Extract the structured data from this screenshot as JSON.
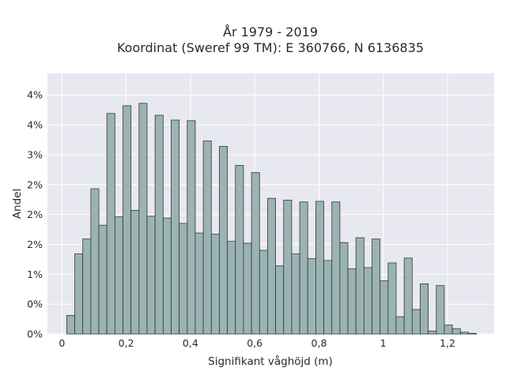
{
  "chart_data": {
    "type": "bar",
    "title_line1": "År 1979 - 2019",
    "title_line2": "Koordinat (Sweref 99 TM): E 360766, N 6136835",
    "xlabel": "Signifikant våghöjd (m)",
    "ylabel": "Andel",
    "xlim": [
      -0.045,
      1.345
    ],
    "ylim": [
      0,
      0.0436
    ],
    "x_ticks": [
      {
        "value": 0,
        "label": "0"
      },
      {
        "value": 0.2,
        "label": "0,2"
      },
      {
        "value": 0.4,
        "label": "0,4"
      },
      {
        "value": 0.6,
        "label": "0,6"
      },
      {
        "value": 0.8,
        "label": "0,8"
      },
      {
        "value": 1.0,
        "label": "1"
      },
      {
        "value": 1.2,
        "label": "1,2"
      }
    ],
    "y_ticks": [
      {
        "value": 0.0,
        "label": "0%"
      },
      {
        "value": 0.005,
        "label": "0%"
      },
      {
        "value": 0.01,
        "label": "1%"
      },
      {
        "value": 0.015,
        "label": "2%"
      },
      {
        "value": 0.02,
        "label": "2%"
      },
      {
        "value": 0.025,
        "label": "2%"
      },
      {
        "value": 0.03,
        "label": "3%"
      },
      {
        "value": 0.035,
        "label": "4%"
      },
      {
        "value": 0.04,
        "label": "4%"
      }
    ],
    "grid": true,
    "bin_width": 0.025,
    "bin_starts": [
      0.015,
      0.04,
      0.065,
      0.09,
      0.115,
      0.14,
      0.165,
      0.19,
      0.215,
      0.24,
      0.265,
      0.29,
      0.315,
      0.34,
      0.365,
      0.39,
      0.415,
      0.44,
      0.465,
      0.49,
      0.515,
      0.54,
      0.565,
      0.59,
      0.615,
      0.64,
      0.665,
      0.69,
      0.715,
      0.74,
      0.765,
      0.79,
      0.815,
      0.84,
      0.865,
      0.89,
      0.915,
      0.94,
      0.965,
      0.99,
      1.015,
      1.04,
      1.065,
      1.09,
      1.115,
      1.14,
      1.165,
      1.19,
      1.215,
      1.24,
      1.265
    ],
    "values": [
      0.0031,
      0.0134,
      0.0159,
      0.0243,
      0.0182,
      0.0369,
      0.0196,
      0.0382,
      0.0207,
      0.0386,
      0.0197,
      0.0366,
      0.0194,
      0.0358,
      0.0185,
      0.0357,
      0.0169,
      0.0323,
      0.0167,
      0.0314,
      0.0155,
      0.0282,
      0.0152,
      0.027,
      0.014,
      0.0227,
      0.0114,
      0.0224,
      0.0134,
      0.0221,
      0.0126,
      0.0222,
      0.0123,
      0.0221,
      0.0153,
      0.0109,
      0.0161,
      0.0111,
      0.0159,
      0.0089,
      0.0119,
      0.0029,
      0.0127,
      0.0041,
      0.0084,
      0.0005,
      0.0081,
      0.0015,
      0.0009,
      0.0003,
      0.0001
    ]
  }
}
